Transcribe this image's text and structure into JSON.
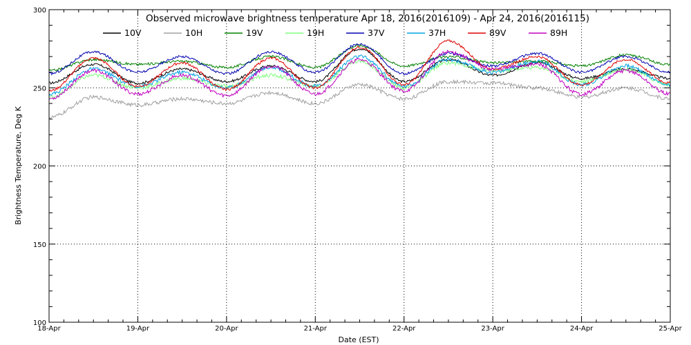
{
  "chart_data": {
    "type": "line",
    "title": "Observed microwave brightness temperature Apr 18, 2016(2016109) - Apr 24, 2016(2016115)",
    "xlabel": "Date (EST)",
    "ylabel": "Brightness Temperature, Deg K",
    "xlim": [
      0,
      7
    ],
    "ylim": [
      100,
      300
    ],
    "x_tick_labels": [
      "18-Apr",
      "19-Apr",
      "20-Apr",
      "21-Apr",
      "22-Apr",
      "23-Apr",
      "24-Apr",
      "25-Apr"
    ],
    "y_tick_labels": [
      "100",
      "150",
      "200",
      "250",
      "300"
    ],
    "y_ticks": [
      100,
      150,
      200,
      250,
      300
    ],
    "grid": true,
    "legend_position": "top",
    "x": [
      0,
      0.5,
      1,
      1.5,
      2,
      2.5,
      3,
      3.5,
      4,
      4.5,
      5,
      5.5,
      6,
      6.5,
      7
    ],
    "series": [
      {
        "name": "10V",
        "color": "#000000",
        "values": [
          253,
          265,
          253,
          262,
          254,
          264,
          254,
          275,
          254,
          268,
          258,
          266,
          256,
          262,
          256
        ]
      },
      {
        "name": "10H",
        "color": "#a0a0a0",
        "values": [
          231,
          244,
          239,
          243,
          240,
          247,
          240,
          252,
          243,
          254,
          253,
          250,
          244,
          250,
          243
        ]
      },
      {
        "name": "19V",
        "color": "#008000",
        "values": [
          261,
          268,
          265,
          267,
          263,
          270,
          263,
          277,
          264,
          270,
          266,
          267,
          264,
          271,
          265
        ]
      },
      {
        "name": "19H",
        "color": "#80ff80",
        "values": [
          244,
          258,
          250,
          256,
          251,
          258,
          251,
          267,
          250,
          266,
          261,
          263,
          254,
          262,
          252
        ]
      },
      {
        "name": "37V",
        "color": "#0000b0",
        "values": [
          259,
          273,
          260,
          270,
          259,
          273,
          260,
          278,
          259,
          272,
          264,
          272,
          260,
          270,
          260
        ]
      },
      {
        "name": "37H",
        "color": "#00a0e0",
        "values": [
          246,
          262,
          251,
          260,
          250,
          263,
          251,
          270,
          251,
          268,
          260,
          267,
          252,
          264,
          252
        ]
      },
      {
        "name": "89V",
        "color": "#e00000",
        "values": [
          248,
          269,
          251,
          266,
          249,
          269,
          250,
          276,
          252,
          280,
          262,
          270,
          252,
          268,
          253
        ]
      },
      {
        "name": "89H",
        "color": "#c000c0",
        "values": [
          243,
          261,
          246,
          258,
          245,
          264,
          246,
          268,
          248,
          273,
          262,
          265,
          246,
          261,
          246
        ]
      }
    ]
  }
}
